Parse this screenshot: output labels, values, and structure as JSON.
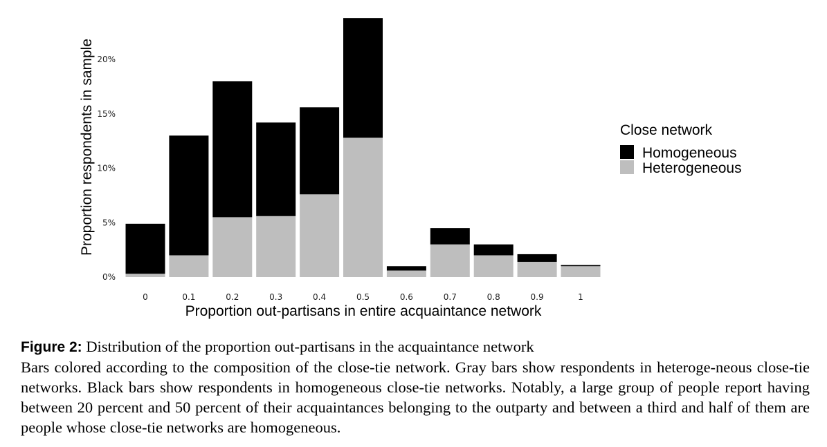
{
  "chart_data": {
    "type": "bar",
    "stacked": true,
    "categories": [
      "0",
      "0.1",
      "0.2",
      "0.3",
      "0.4",
      "0.5",
      "0.6",
      "0.7",
      "0.8",
      "0.9",
      "1"
    ],
    "series": [
      {
        "name": "Heterogeneous",
        "color": "#bebebe",
        "values": [
          0.3,
          2.0,
          5.5,
          5.6,
          7.6,
          12.8,
          0.6,
          3.0,
          2.0,
          1.4,
          1.0
        ]
      },
      {
        "name": "Homogeneous",
        "color": "#000000",
        "values": [
          4.6,
          11.0,
          12.5,
          8.6,
          8.0,
          11.0,
          0.4,
          1.5,
          1.0,
          0.7,
          0.1
        ]
      }
    ],
    "xlabel": "Proportion out-partisans in entire acquaintance network",
    "ylabel": "Proportion respondents in sample",
    "yticks": [
      "0%",
      "5%",
      "10%",
      "15%",
      "20%"
    ],
    "ylim": [
      0,
      24
    ],
    "grid": false,
    "legend": {
      "title": "Close network",
      "position": "right",
      "order": [
        "Homogeneous",
        "Heterogeneous"
      ]
    }
  },
  "caption": {
    "label": "Figure 2:",
    "title": " Distribution of the proportion out-partisans in the acquaintance network",
    "body": "Bars colored according to the composition of the close-tie network. Gray bars show respondents in heteroge-neous close-tie networks. Black bars show respondents in homogeneous close-tie networks. Notably, a large group of people report having between 20 percent and 50 percent of their acquaintances belonging to the outparty and between a third and half of them are people whose close-tie networks are homogeneous."
  }
}
